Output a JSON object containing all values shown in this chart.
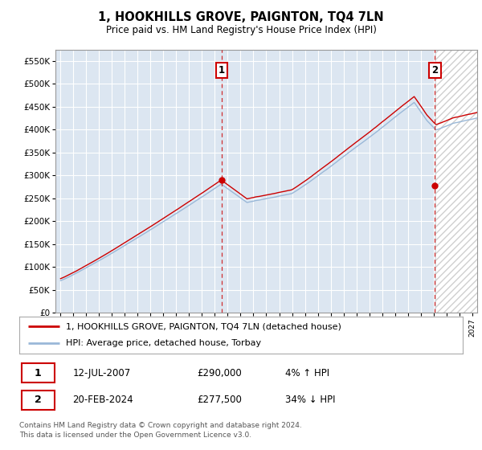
{
  "title": "1, HOOKHILLS GROVE, PAIGNTON, TQ4 7LN",
  "subtitle": "Price paid vs. HM Land Registry's House Price Index (HPI)",
  "ylim": [
    0,
    575000
  ],
  "yticks": [
    0,
    50000,
    100000,
    150000,
    200000,
    250000,
    300000,
    350000,
    400000,
    450000,
    500000,
    550000
  ],
  "ytick_labels": [
    "£0",
    "£50K",
    "£100K",
    "£150K",
    "£200K",
    "£250K",
    "£300K",
    "£350K",
    "£400K",
    "£450K",
    "£500K",
    "£550K"
  ],
  "bg_color": "#dce6f1",
  "grid_color": "#ffffff",
  "hpi_color": "#9ab8d8",
  "price_color": "#cc0000",
  "legend_line1": "1, HOOKHILLS GROVE, PAIGNTON, TQ4 7LN (detached house)",
  "legend_line2": "HPI: Average price, detached house, Torbay",
  "table_row1": [
    "1",
    "12-JUL-2007",
    "£290,000",
    "4% ↑ HPI"
  ],
  "table_row2": [
    "2",
    "20-FEB-2024",
    "£277,500",
    "34% ↓ HPI"
  ],
  "footer": "Contains HM Land Registry data © Crown copyright and database right 2024.\nThis data is licensed under the Open Government Licence v3.0.",
  "future_start_year": 2024.17,
  "sale1_year": 2007.54,
  "sale1_price": 290000,
  "sale2_year": 2024.12,
  "sale2_price": 277500,
  "xmin": 1994.6,
  "xmax": 2027.4
}
